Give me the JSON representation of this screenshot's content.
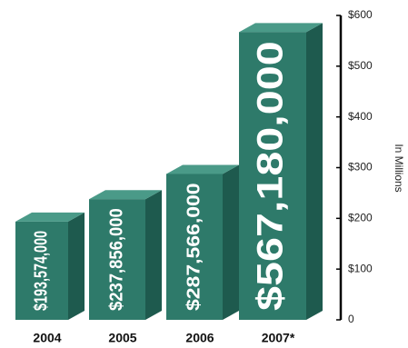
{
  "chart_data": {
    "type": "bar3d",
    "categories": [
      "2004",
      "2005",
      "2006",
      "2007*"
    ],
    "values": [
      193.574,
      237.856,
      287.566,
      567.18
    ],
    "value_labels": [
      "$193,574,000",
      "$237,856,000",
      "$287,566,000",
      "$567,180,000"
    ],
    "color": "#2e7a6a",
    "y_axis_label": "In Millions",
    "ylim": [
      0,
      600
    ],
    "yticks": [
      0,
      {
        "value": 100,
        "label": "$100"
      },
      {
        "value": 200,
        "label": "$200"
      },
      {
        "value": 300,
        "label": "$300"
      },
      {
        "value": 400,
        "label": "$400"
      },
      {
        "value": 500,
        "label": "$500"
      },
      {
        "value": 600,
        "label": "$600"
      }
    ]
  }
}
